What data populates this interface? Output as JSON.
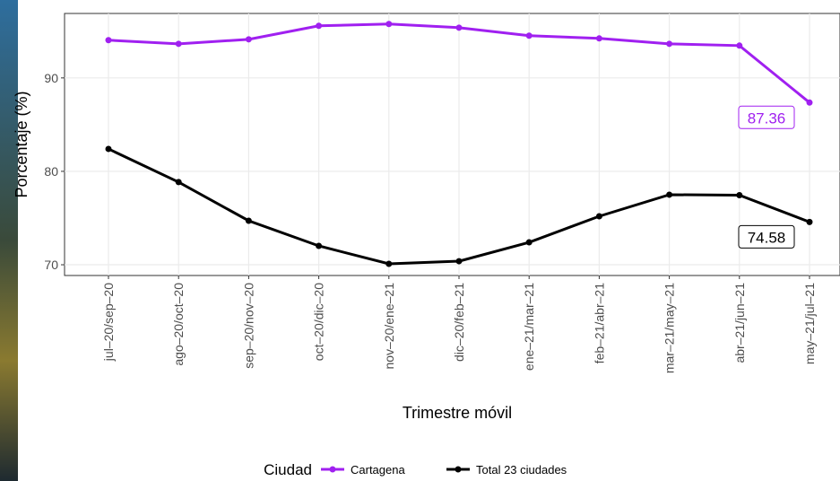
{
  "chart_data": {
    "type": "line",
    "x_label": "Trimestre móvil",
    "y_label": "Porcentaje (%)",
    "categories": [
      "jul–20/sep–20",
      "ago–20/oct–20",
      "sep–20/nov–20",
      "oct–20/dic–20",
      "nov–20/ene–21",
      "dic–20/feb–21",
      "ene–21/mar–21",
      "feb–21/abr–21",
      "mar–21/may–21",
      "abr–21/jun–21",
      "may–21/jul–21"
    ],
    "series": [
      {
        "name": "Cartagena",
        "color": "#a020f0",
        "values": [
          94.04,
          93.65,
          94.13,
          95.58,
          95.77,
          95.38,
          94.52,
          94.23,
          93.65,
          93.46,
          87.36
        ]
      },
      {
        "name": "Total 23 ciudades",
        "color": "#000000",
        "values": [
          82.4,
          78.85,
          74.71,
          72.02,
          70.1,
          70.38,
          72.4,
          75.19,
          77.5,
          77.45,
          74.58
        ]
      }
    ],
    "ylim": [
      68.85,
      96.9
    ],
    "yticks": [
      70,
      80,
      90
    ],
    "grid": true,
    "legend_title": "Ciudad",
    "legend_position": "bottom"
  }
}
